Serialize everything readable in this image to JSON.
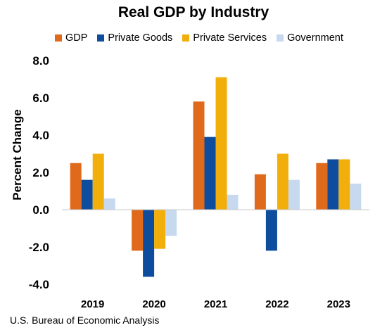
{
  "chart_data": {
    "type": "bar",
    "title": "Real GDP by Industry",
    "ylabel": "Percent Change",
    "xlabel": "",
    "categories": [
      "2019",
      "2020",
      "2021",
      "2022",
      "2023"
    ],
    "series": [
      {
        "name": "GDP",
        "color": "#E06A1B",
        "values": [
          2.5,
          -2.2,
          5.8,
          1.9,
          2.5
        ]
      },
      {
        "name": "Private Goods",
        "color": "#0E4C9E",
        "values": [
          1.6,
          -3.6,
          3.9,
          -2.2,
          2.7
        ]
      },
      {
        "name": "Private Services",
        "color": "#F2AE0B",
        "values": [
          3.0,
          -2.1,
          7.1,
          3.0,
          2.7
        ]
      },
      {
        "name": "Government",
        "color": "#C6D9EF",
        "values": [
          0.6,
          -1.4,
          0.8,
          1.6,
          1.4
        ]
      }
    ],
    "ylim": [
      -4.0,
      8.0
    ],
    "yticks": [
      "-4.0",
      "-2.0",
      "0.0",
      "2.0",
      "4.0",
      "6.0",
      "8.0"
    ],
    "ytick_values": [
      -4,
      -2,
      0,
      2,
      4,
      6,
      8
    ],
    "grid": false,
    "legend": "top"
  },
  "source": "U.S. Bureau of Economic Analysis"
}
